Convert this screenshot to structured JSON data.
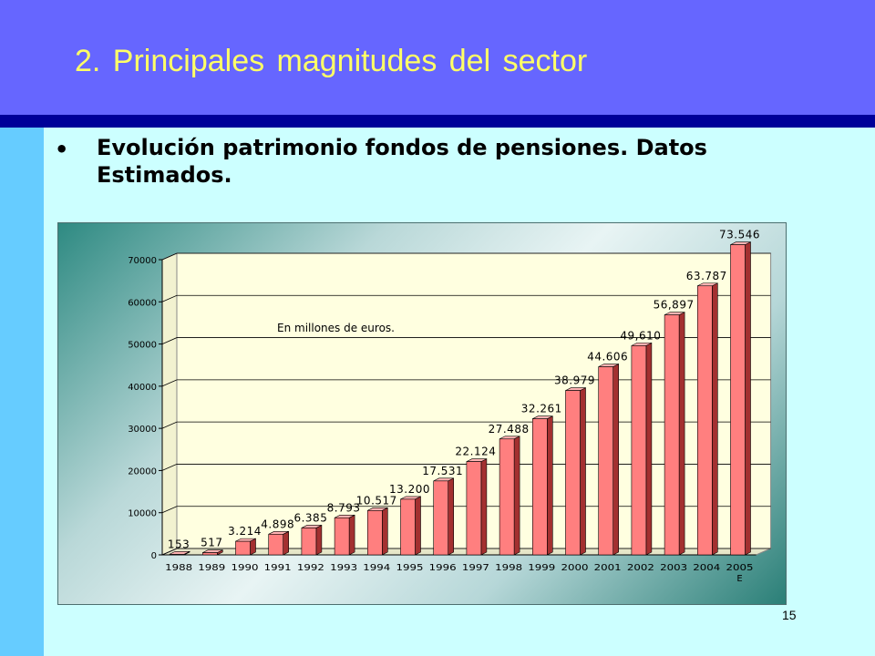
{
  "slide": {
    "title": "2.  Principales  magnitudes  del  sector",
    "bullet": "Evolución patrimonio fondos de pensiones. Datos Estimados.",
    "page_number": "15"
  },
  "chart_data": {
    "type": "bar",
    "annotation": "En millones de euros.",
    "categories": [
      "1988",
      "1989",
      "1990",
      "1991",
      "1992",
      "1993",
      "1994",
      "1995",
      "1996",
      "1997",
      "1998",
      "1999",
      "2000",
      "2001",
      "2002",
      "2003",
      "2004",
      "2005"
    ],
    "category_sublabels": {
      "2005": "E"
    },
    "values": [
      153,
      517,
      3214,
      4898,
      6385,
      8793,
      10517,
      13200,
      17531,
      22124,
      27488,
      32261,
      38979,
      44606,
      49610,
      56897,
      63787,
      73546
    ],
    "data_labels": [
      "153",
      "517",
      "3.214",
      "4.898",
      "6.385",
      "8.793",
      "10.517",
      "13.200",
      "17.531",
      "22.124",
      "27.488",
      "32.261",
      "38.979",
      "44.606",
      "49,610",
      "56,897",
      "63.787",
      "73.546"
    ],
    "y_ticks": [
      0,
      10000,
      20000,
      30000,
      40000,
      50000,
      60000,
      70000
    ],
    "ylim": [
      0,
      70000
    ],
    "grid": true,
    "colors": {
      "bar_front": "#ff7f7f",
      "bar_side": "#a33030",
      "bar_top": "#ffb3b3",
      "wall": "#ffffe0",
      "grid": "#000000"
    }
  }
}
